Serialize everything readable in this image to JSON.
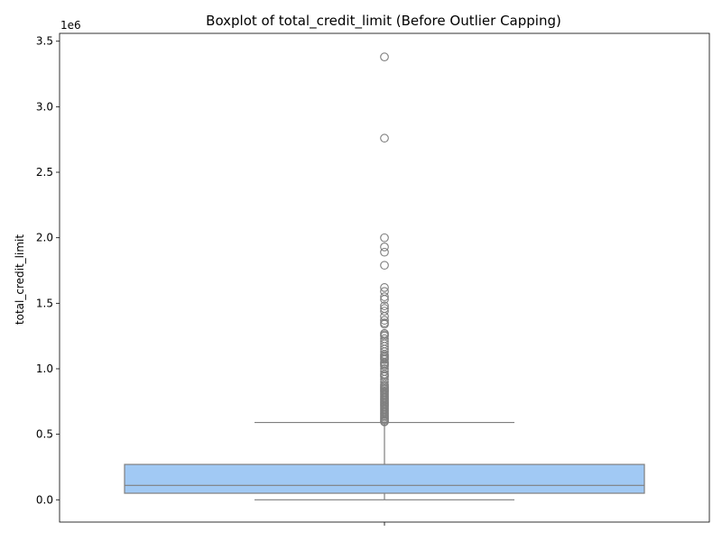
{
  "chart_data": {
    "type": "box",
    "title": "Boxplot of total_credit_limit (Before Outlier Capping)",
    "xlabel": "",
    "ylabel": "total_credit_limit",
    "y_offset_label": "1e6",
    "ylim": [
      -170000,
      3560000
    ],
    "yticks": [
      0,
      500000,
      1000000,
      1500000,
      2000000,
      2500000,
      3000000,
      3500000
    ],
    "ytick_labels": [
      "0.0",
      "0.5",
      "1.0",
      "1.5",
      "2.0",
      "2.5",
      "3.0",
      "3.5"
    ],
    "grid": false,
    "box_color": "#a1c9f4",
    "line_color": "#7f7f7f",
    "box": {
      "whisker_low": 0,
      "q1": 50000,
      "median": 110000,
      "q3": 270000,
      "whisker_high": 590000
    },
    "outliers": [
      3380000,
      2760000,
      2000000,
      1930000,
      1890000,
      1790000,
      1620000,
      1590000,
      1550000,
      1530000,
      1480000,
      1460000,
      1440000,
      1400000,
      1370000,
      1350000,
      1340000,
      1270000,
      1260000,
      1250000,
      1230000,
      1210000,
      1190000,
      1170000,
      1150000,
      1130000,
      1110000,
      1100000,
      1090000,
      1080000,
      1070000,
      1050000,
      1040000,
      1030000,
      1020000,
      1000000,
      980000,
      960000,
      950000,
      940000,
      920000,
      900000,
      880000,
      870000,
      860000,
      850000,
      840000,
      830000,
      820000,
      810000,
      800000,
      790000,
      780000,
      770000,
      760000,
      750000,
      740000,
      730000,
      720000,
      710000,
      700000,
      690000,
      680000,
      670000,
      660000,
      650000,
      640000,
      630000,
      620000,
      610000,
      600000,
      595000
    ]
  }
}
